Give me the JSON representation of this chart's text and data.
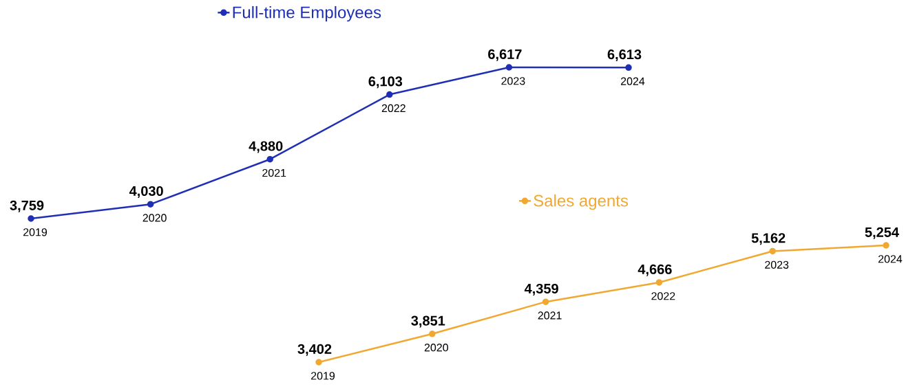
{
  "chart_data": [
    {
      "type": "line",
      "categories": [
        "2019",
        "2020",
        "2021",
        "2022",
        "2023",
        "2024"
      ],
      "series": [
        {
          "name": "Full-time Employees",
          "color": "#1f2fb5",
          "values": [
            3759,
            4030,
            4880,
            6103,
            6617,
            6613
          ],
          "value_labels": [
            "3,759",
            "4,030",
            "4,880",
            "6,103",
            "6,617",
            "6,613"
          ]
        }
      ],
      "marker": "circle",
      "legend": "top"
    },
    {
      "type": "line",
      "categories": [
        "2019",
        "2020",
        "2021",
        "2022",
        "2023",
        "2024"
      ],
      "series": [
        {
          "name": "Sales agents",
          "color": "#f0a830",
          "values": [
            3402,
            3851,
            4359,
            4666,
            5162,
            5254
          ],
          "value_labels": [
            "3,402",
            "3,851",
            "4,359",
            "4,666",
            "5,162",
            "5,254"
          ]
        }
      ],
      "marker": "circle",
      "legend": "top"
    }
  ]
}
